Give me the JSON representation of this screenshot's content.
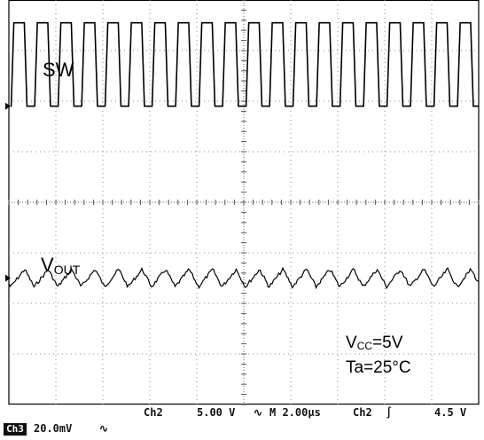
{
  "chart_data": {
    "type": "line",
    "title": "",
    "time_per_div_us": 2.0,
    "divisions": {
      "horizontal": 10,
      "vertical": 8
    },
    "grid": true,
    "series": [
      {
        "name": "SW",
        "channel": "Ch2",
        "volts_per_div": 5.0,
        "waveform": "square",
        "period_us": 1.0,
        "pulse_count": 20,
        "high_level_div": 1.05,
        "low_level_div": -0.6,
        "center_div": 2.5,
        "color": "#000000"
      },
      {
        "name": "VOUT",
        "channel": "Ch3",
        "volts_per_div": 0.02,
        "waveform": "ripple",
        "period_us": 1.0,
        "ripple_pp_div": 0.35,
        "center_div": -1.5,
        "color": "#000000"
      }
    ]
  },
  "labels": {
    "sw": "SW",
    "vout_main": "V",
    "vout_sub": "OUT",
    "vcc_main": "V",
    "vcc_sub": "CC",
    "vcc_value": "=5V",
    "ta": "Ta=25°C"
  },
  "readout": {
    "ch2": "Ch2",
    "ch2_vdiv": "5.00 V",
    "coupling_icon": "bandwidth-limit-icon",
    "coupling_symbol": "∿",
    "timebase": "M 2.00µs",
    "trigger_source": "Ch2",
    "trigger_edge": "∫",
    "trigger_level": "4.5 V",
    "ch3_badge": "Ch3",
    "ch3_vdiv": "20.0mV",
    "ch3_bw_symbol": "∿"
  }
}
